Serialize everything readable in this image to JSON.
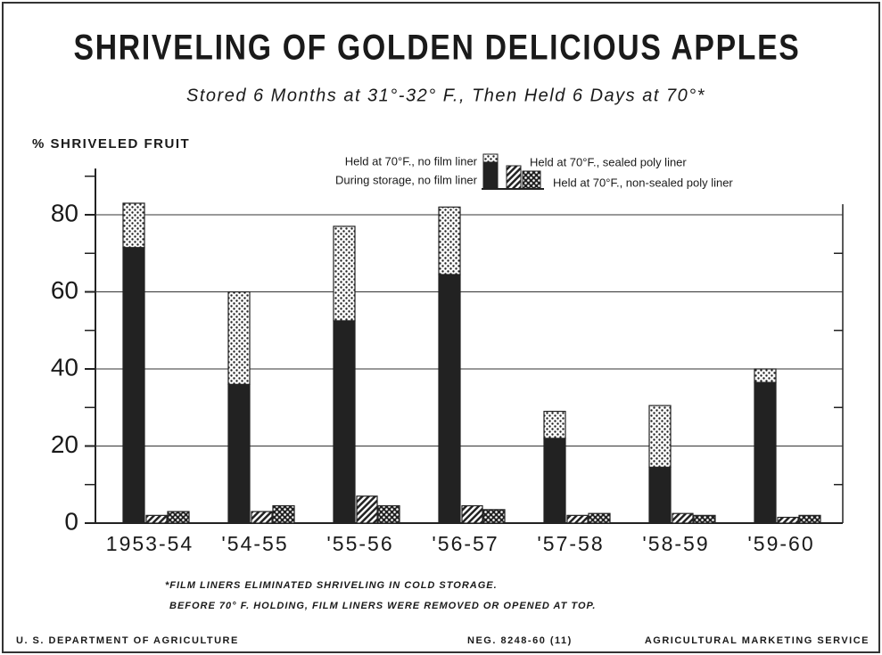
{
  "chart_data": {
    "type": "bar",
    "title": "SHRIVELING OF GOLDEN DELICIOUS APPLES",
    "subtitle": "Stored 6 Months at 31°-32° F., Then Held 6 Days at 70°*",
    "y_label": "% SHRIVELED FRUIT",
    "categories": [
      "1953-54",
      "'54-55",
      "'55-56",
      "'56-57",
      "'57-58",
      "'58-59",
      "'59-60"
    ],
    "series": [
      {
        "name": "During storage, no film liner",
        "color": "#222222",
        "pattern": "solid",
        "stack": "a",
        "values": [
          71.5,
          36,
          52.5,
          64.5,
          22,
          14.5,
          36.5
        ]
      },
      {
        "name": "Held at 70°F., no film liner",
        "color": "#222222",
        "pattern": "dots",
        "stack": "a",
        "values": [
          11.5,
          24,
          24.5,
          17.5,
          7,
          16,
          3.5
        ]
      },
      {
        "name": "Held at 70°F., sealed poly liner",
        "color": "#222222",
        "pattern": "hatch",
        "stack": "b",
        "values": [
          2,
          3,
          7,
          4.5,
          2,
          2.5,
          1.5
        ]
      },
      {
        "name": "Held at 70°F., non-sealed poly liner",
        "color": "#222222",
        "pattern": "crossdots",
        "stack": "c",
        "values": [
          3,
          4.5,
          4.5,
          3.5,
          2.5,
          2,
          2
        ]
      }
    ],
    "ylim": [
      0,
      92
    ],
    "yticks": [
      0,
      20,
      40,
      60,
      80
    ],
    "yminorticks": [
      10,
      30,
      50,
      70,
      90
    ],
    "grid": true,
    "footnotes": [
      "*FILM LINERS ELIMINATED SHRIVELING IN COLD STORAGE.",
      "BEFORE 70° F. HOLDING, FILM LINERS WERE REMOVED OR OPENED AT TOP."
    ],
    "footer_left": "U. S. DEPARTMENT OF AGRICULTURE",
    "footer_middle": "NEG. 8248-60 (11)",
    "footer_right": "AGRICULTURAL MARKETING SERVICE"
  }
}
